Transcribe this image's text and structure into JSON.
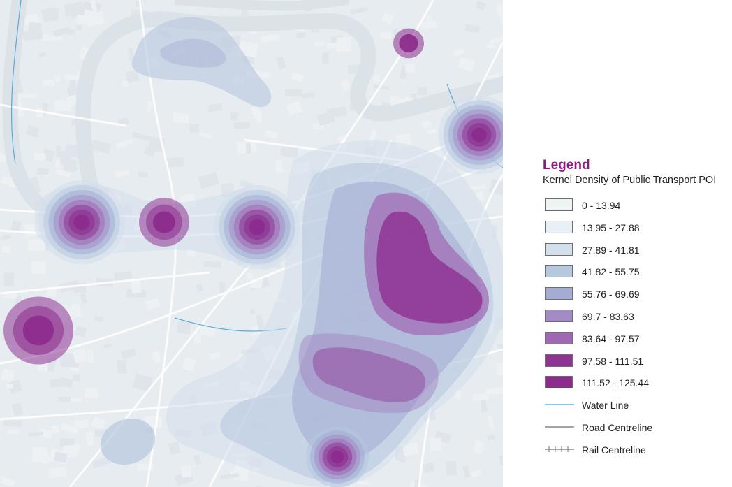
{
  "legend": {
    "title": "Legend",
    "subtitle": "Kernel Density of Public Transport POI",
    "density_classes": [
      {
        "label": "0 - 13.94",
        "color": "#eef3f6"
      },
      {
        "label": "13.95 - 27.88",
        "color": "#e9f0f5"
      },
      {
        "label": "27.89 - 41.81",
        "color": "#d4dfec"
      },
      {
        "label": "41.82 - 55.75",
        "color": "#b7c7de"
      },
      {
        "label": "55.76 - 69.69",
        "color": "#a3acd3"
      },
      {
        "label": "69.7 - 83.63",
        "color": "#a48bc4"
      },
      {
        "label": "83.64 - 97.57",
        "color": "#a068b4"
      },
      {
        "label": "97.58 - 111.51",
        "color": "#8e3593"
      },
      {
        "label": "111.52 - 125.44",
        "color": "#8c2a8d"
      }
    ],
    "line_symbols": [
      {
        "label": "Water Line",
        "color": "#4aa3d8",
        "icon": "water-line-icon"
      },
      {
        "label": "Road Centreline",
        "color": "#6e6e6e",
        "icon": "road-line-icon"
      },
      {
        "label": "Rail Centreline",
        "color": "#6e6e6e",
        "icon": "rail-line-icon"
      }
    ]
  },
  "map": {
    "basemap_color": "#e6ecef",
    "river_color": "#dbe3e8",
    "road_color": "#ffffff"
  }
}
